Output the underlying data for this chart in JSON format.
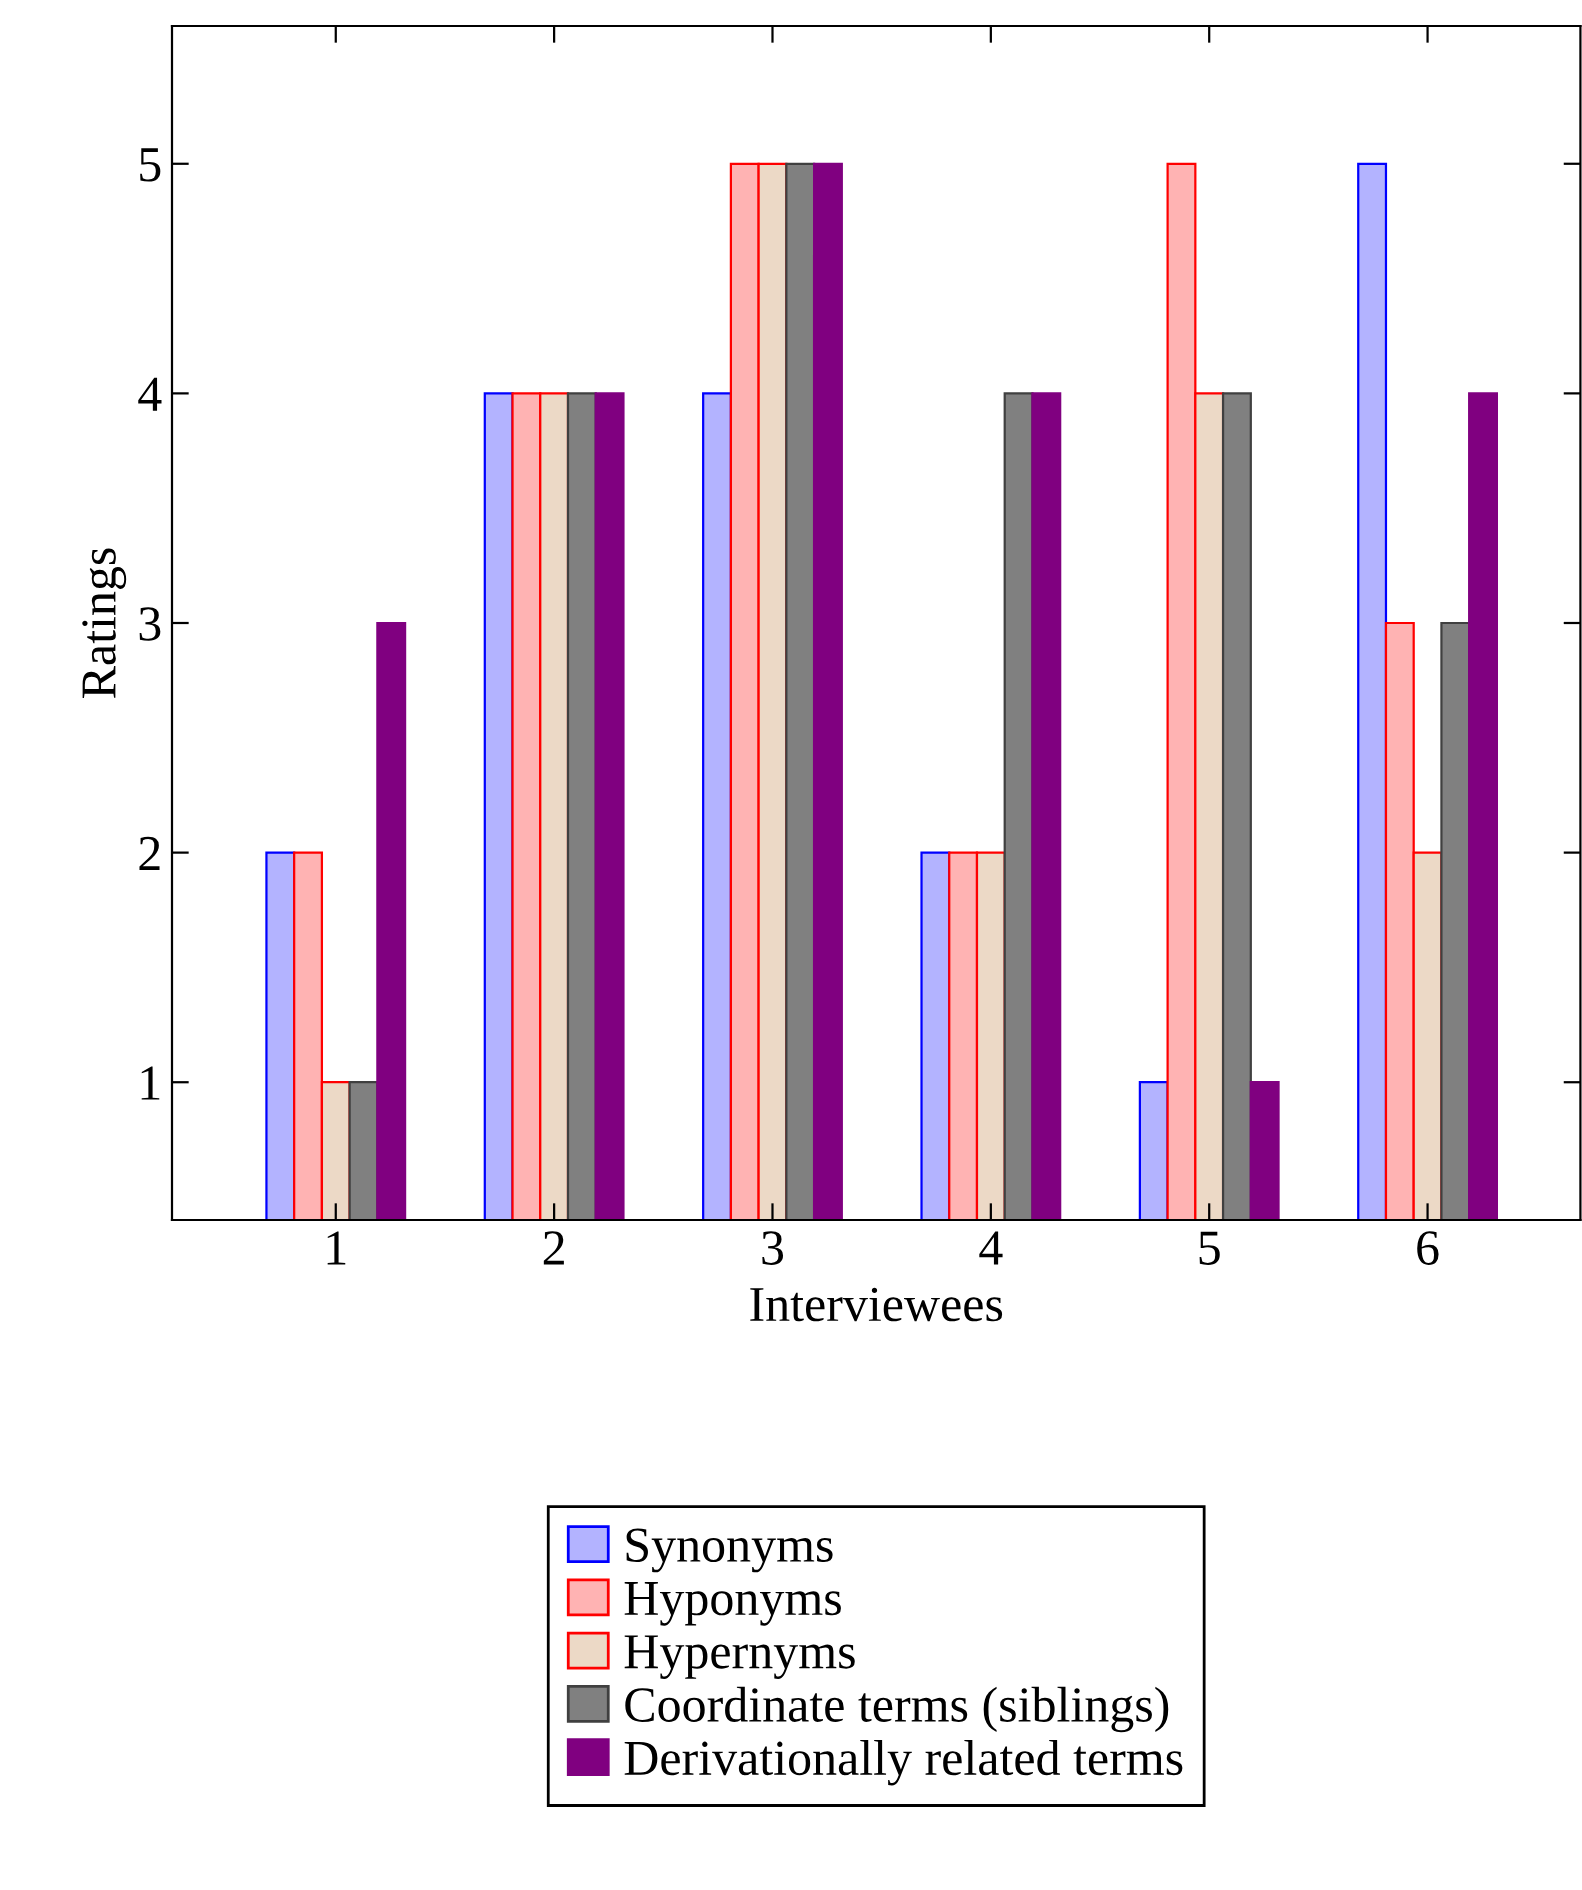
{
  "chart_data": {
    "type": "bar",
    "xlabel": "Interviewees",
    "ylabel": "Ratings",
    "x": [
      1,
      2,
      3,
      4,
      5,
      6
    ],
    "xlim": [
      0.25,
      6.7
    ],
    "xticks": [
      1,
      2,
      3,
      4,
      5,
      6
    ],
    "ylim": [
      0.4,
      5.6
    ],
    "yticks": [
      1,
      2,
      3,
      4,
      5
    ],
    "grid": false,
    "legend": "bottom",
    "series": [
      {
        "name": "Synonyms",
        "color": "#b3b3ff",
        "values": [
          2,
          4,
          4,
          2,
          1,
          5
        ]
      },
      {
        "name": "Hyponyms",
        "color": "#ffb3b3",
        "values": [
          2,
          4,
          5,
          2,
          5,
          3
        ]
      },
      {
        "name": "Hypernyms",
        "color": "#ecd9c6",
        "values": [
          1,
          4,
          5,
          2,
          4,
          2
        ]
      },
      {
        "name": "Coordinate terms (siblings)",
        "color": "#808080",
        "values": [
          1,
          4,
          5,
          4,
          4,
          3
        ]
      },
      {
        "name": "Derivationally related terms",
        "color": "#800080",
        "values": [
          3,
          4,
          5,
          4,
          1,
          4
        ]
      }
    ]
  }
}
